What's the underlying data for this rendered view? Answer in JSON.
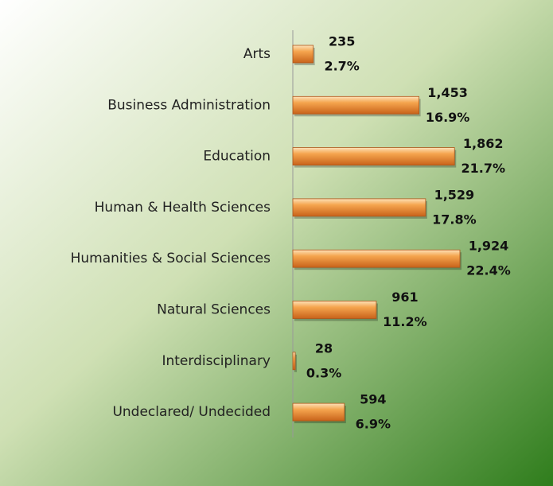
{
  "chart_data": {
    "type": "bar",
    "orientation": "horizontal",
    "categories": [
      "Arts",
      "Business Administration",
      "Education",
      "Human & Health Sciences",
      "Humanities & Social Sciences",
      "Natural Sciences",
      "Interdisciplinary",
      "Undeclared/ Undecided"
    ],
    "values": [
      235,
      1453,
      1862,
      1529,
      1924,
      961,
      28,
      594
    ],
    "value_labels": [
      "235",
      "1,453",
      "1,862",
      "1,529",
      "1,924",
      "961",
      "28",
      "594"
    ],
    "shares": [
      2.7,
      16.9,
      21.7,
      17.8,
      22.4,
      11.2,
      0.3,
      6.9
    ],
    "share_labels": [
      "2.7%",
      "16.9%",
      "21.7%",
      "17.8%",
      "22.4%",
      "11.2%",
      "0.3%",
      "6.9%"
    ],
    "color": "#f0922e"
  }
}
